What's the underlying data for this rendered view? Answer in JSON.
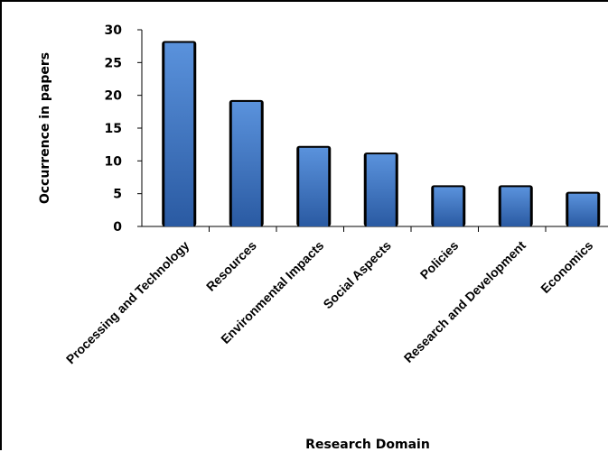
{
  "chart_data": {
    "type": "bar",
    "title": "",
    "xlabel": "Research Domain",
    "ylabel": "Occurrence in papers",
    "categories": [
      "Processing and Technology",
      "Resources",
      "Environmental Impacts",
      "Social Aspects",
      "Policies",
      "Research and Development",
      "Economics"
    ],
    "values": [
      28,
      19,
      12,
      11,
      6,
      6,
      5
    ],
    "ylim": [
      0,
      30
    ],
    "yticks": [
      "0",
      "5",
      "10",
      "15",
      "20",
      "25",
      "30"
    ],
    "grid": false,
    "legend": "none",
    "colors": {
      "bar_light": "#5a92dc",
      "bar_dark": "#2a5aa2",
      "bar_outline": "#000000"
    }
  }
}
